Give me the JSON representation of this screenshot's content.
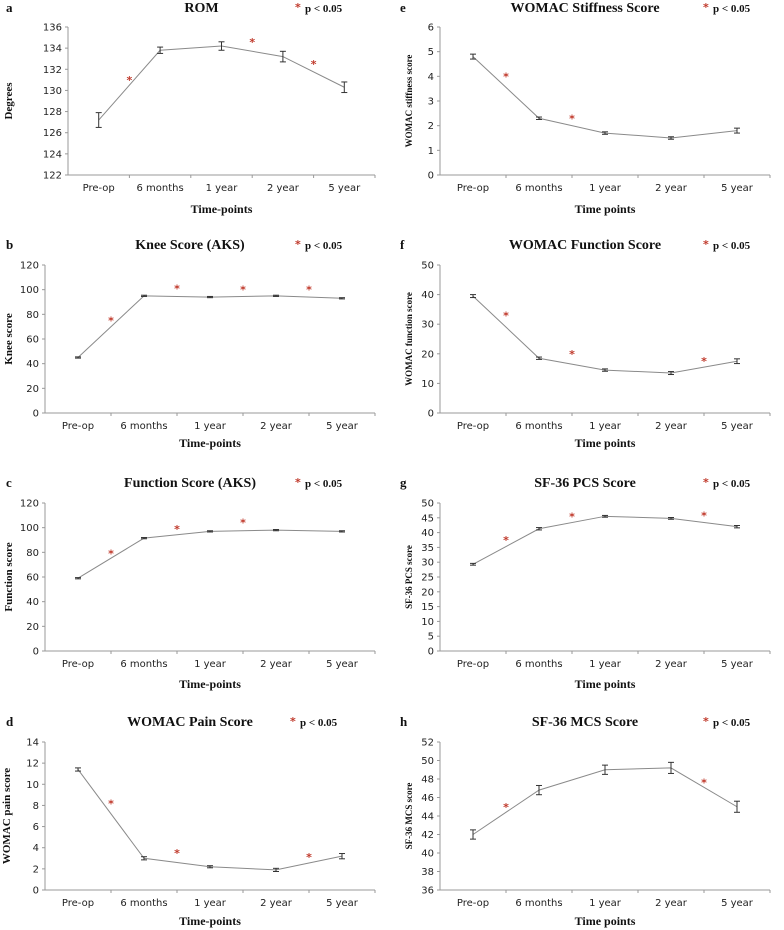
{
  "legend": {
    "star": "*",
    "label": "p < 0.05"
  },
  "colors": {
    "line": "#8a8a8a",
    "star": "#c0392b",
    "axis": "#999999"
  },
  "chart_data": [
    {
      "panel": "a",
      "type": "line",
      "title": "ROM",
      "xlabel": "Time-points",
      "ylabel": "Degrees",
      "categories": [
        "Pre-op",
        "6 months",
        "1 year",
        "2 year",
        "5 year"
      ],
      "values": [
        127.2,
        133.8,
        134.2,
        133.2,
        130.3
      ],
      "errors": [
        0.7,
        0.3,
        0.4,
        0.5,
        0.5
      ],
      "ylim": [
        122,
        136
      ],
      "yticks": [
        122,
        124,
        126,
        128,
        130,
        132,
        134,
        136
      ],
      "significance": [
        {
          "between": [
            0,
            1
          ],
          "y": 131
        },
        {
          "between": [
            2,
            3
          ],
          "y": 134.6
        },
        {
          "between": [
            3,
            4
          ],
          "y": 132.5
        }
      ]
    },
    {
      "panel": "b",
      "type": "line",
      "title": "Knee Score (AKS)",
      "xlabel": "Time-points",
      "ylabel": "Knee score",
      "categories": [
        "Pre-op",
        "6 months",
        "1 year",
        "2 year",
        "5 year"
      ],
      "values": [
        45,
        95,
        94,
        95,
        93
      ],
      "errors": [
        0.5,
        0.5,
        0.5,
        0.5,
        0.5
      ],
      "ylim": [
        0,
        120
      ],
      "yticks": [
        0,
        20,
        40,
        60,
        80,
        100,
        120
      ],
      "significance": [
        {
          "between": [
            0,
            1
          ],
          "y": 75
        },
        {
          "between": [
            1,
            2
          ],
          "y": 101
        },
        {
          "between": [
            2,
            3
          ],
          "y": 100
        },
        {
          "between": [
            3,
            4
          ],
          "y": 100
        }
      ]
    },
    {
      "panel": "c",
      "type": "line",
      "title": "Function Score (AKS)",
      "xlabel": "Time-points",
      "ylabel": "Function score",
      "categories": [
        "Pre-op",
        "6 months",
        "1 year",
        "2 year",
        "5 year"
      ],
      "values": [
        59,
        91.5,
        97,
        98,
        97
      ],
      "errors": [
        0.5,
        0.5,
        0.5,
        0.5,
        0.5
      ],
      "ylim": [
        0,
        120
      ],
      "yticks": [
        0,
        20,
        40,
        60,
        80,
        100,
        120
      ],
      "significance": [
        {
          "between": [
            0,
            1
          ],
          "y": 79
        },
        {
          "between": [
            1,
            2
          ],
          "y": 99
        },
        {
          "between": [
            2,
            3
          ],
          "y": 104
        }
      ]
    },
    {
      "panel": "d",
      "type": "line",
      "title": "WOMAC Pain Score",
      "xlabel": "Time-points",
      "ylabel": "WOMAC pain score",
      "categories": [
        "Pre-op",
        "6 months",
        "1 year",
        "2 year",
        "5 year"
      ],
      "values": [
        11.4,
        3.0,
        2.2,
        1.9,
        3.2
      ],
      "errors": [
        0.15,
        0.15,
        0.1,
        0.15,
        0.25
      ],
      "ylim": [
        0,
        14
      ],
      "yticks": [
        0,
        2,
        4,
        6,
        8,
        10,
        12,
        14
      ],
      "significance": [
        {
          "between": [
            0,
            1
          ],
          "y": 8.2
        },
        {
          "between": [
            1,
            2
          ],
          "y": 3.5
        },
        {
          "between": [
            3,
            4
          ],
          "y": 3.1
        }
      ]
    },
    {
      "panel": "e",
      "type": "line",
      "title": "WOMAC Stiffness Score",
      "xlabel": "Time points",
      "ylabel": "WOMAC stiffness score",
      "categories": [
        "Pre-op",
        "6 months",
        "1 year",
        "2 year",
        "5 year"
      ],
      "values": [
        4.8,
        2.3,
        1.7,
        1.5,
        1.8
      ],
      "errors": [
        0.1,
        0.05,
        0.05,
        0.05,
        0.1
      ],
      "ylim": [
        0,
        6
      ],
      "yticks": [
        0,
        1,
        2,
        3,
        4,
        5,
        6
      ],
      "significance": [
        {
          "between": [
            0,
            1
          ],
          "y": 4.0
        },
        {
          "between": [
            1,
            2
          ],
          "y": 2.3
        }
      ]
    },
    {
      "panel": "f",
      "type": "line",
      "title": "WOMAC Function Score",
      "xlabel": "Time points",
      "ylabel": "WOMAC function score",
      "categories": [
        "Pre-op",
        "6 months",
        "1 year",
        "2 year",
        "5 year"
      ],
      "values": [
        39.5,
        18.5,
        14.5,
        13.5,
        17.5
      ],
      "errors": [
        0.5,
        0.4,
        0.4,
        0.5,
        0.8
      ],
      "ylim": [
        0,
        50
      ],
      "yticks": [
        0,
        10,
        20,
        30,
        40,
        50
      ],
      "significance": [
        {
          "between": [
            0,
            1
          ],
          "y": 33
        },
        {
          "between": [
            1,
            2
          ],
          "y": 20
        },
        {
          "between": [
            3,
            4
          ],
          "y": 17.5
        }
      ]
    },
    {
      "panel": "g",
      "type": "line",
      "title": "SF-36 PCS Score",
      "xlabel": "Time points",
      "ylabel": "SF-36 PCS score",
      "categories": [
        "Pre-op",
        "6 months",
        "1 year",
        "2 year",
        "5 year"
      ],
      "values": [
        29.3,
        41.3,
        45.5,
        44.8,
        42.0
      ],
      "errors": [
        0.3,
        0.4,
        0.3,
        0.3,
        0.4
      ],
      "ylim": [
        0,
        50
      ],
      "yticks": [
        0,
        5,
        10,
        15,
        20,
        25,
        30,
        35,
        40,
        45,
        50
      ],
      "significance": [
        {
          "between": [
            0,
            1
          ],
          "y": 37.5
        },
        {
          "between": [
            1,
            2
          ],
          "y": 45.5
        },
        {
          "between": [
            3,
            4
          ],
          "y": 45.7
        }
      ]
    },
    {
      "panel": "h",
      "type": "line",
      "title": "SF-36 MCS Score",
      "xlabel": "Time points",
      "ylabel": "SF-36 MCS score",
      "categories": [
        "Pre-op",
        "6 months",
        "1 year",
        "2 year",
        "5 year"
      ],
      "values": [
        42.0,
        46.8,
        49.0,
        49.2,
        45.0
      ],
      "errors": [
        0.5,
        0.5,
        0.5,
        0.6,
        0.6
      ],
      "ylim": [
        36,
        52
      ],
      "yticks": [
        36,
        38,
        40,
        42,
        44,
        46,
        48,
        50,
        52
      ],
      "significance": [
        {
          "between": [
            0,
            1
          ],
          "y": 45.0
        },
        {
          "between": [
            3,
            4
          ],
          "y": 47.6
        }
      ]
    }
  ]
}
